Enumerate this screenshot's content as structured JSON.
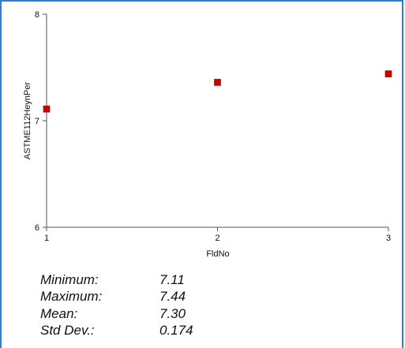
{
  "chart_data": {
    "type": "scatter",
    "xlabel": "FldNo",
    "ylabel": "ASTME112HeynPer",
    "xlim": [
      1,
      3
    ],
    "ylim": [
      6,
      8
    ],
    "x_ticks": [
      "1",
      "2",
      "3"
    ],
    "y_ticks": [
      "6",
      "7",
      "8"
    ],
    "marker_color": "#cc0000",
    "grid": false,
    "points": [
      {
        "x": 1,
        "y": 7.11
      },
      {
        "x": 2,
        "y": 7.36
      },
      {
        "x": 3,
        "y": 7.44
      }
    ]
  },
  "stats": [
    {
      "label": "Minimum:",
      "value": "7.11"
    },
    {
      "label": "Maximum:",
      "value": "7.44"
    },
    {
      "label": "Mean:",
      "value": "7.30"
    },
    {
      "label": "Std Dev.:",
      "value": "0.174"
    }
  ]
}
